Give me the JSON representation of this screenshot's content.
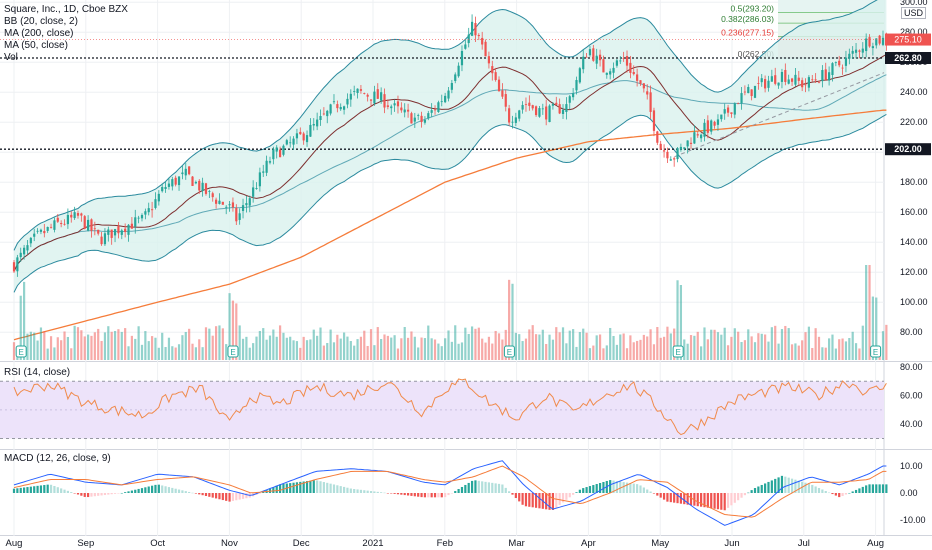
{
  "header": {
    "title": "Square, Inc., 1D, Cboe BZX",
    "bb_label": "BB (20, close, 2)",
    "ma200_label": "MA (200, close)",
    "ma50_label": "MA (50, close)",
    "vol_label": "Vol",
    "currency": "USD"
  },
  "colors": {
    "up": "#26a69a",
    "down": "#ef5350",
    "bb": "#2b8a9e",
    "bb_fill": "#d9f1ee",
    "ma200": "#f57c3a",
    "ma50": "#7e2f2f",
    "rsi": "#f08a4b",
    "rsi_band": "#ede3fa",
    "macd": "#2962ff",
    "signal": "#f57c3a",
    "grid": "#eef0f3",
    "fib": "#e9f5ee"
  },
  "chart_data": [
    {
      "type": "candlestick",
      "title": "Square, Inc., 1D, Cboe BZX",
      "x_tick_labels": [
        "Aug",
        "Sep",
        "Oct",
        "Nov",
        "Dec",
        "2021",
        "Feb",
        "Mar",
        "Apr",
        "May",
        "Jun",
        "Jul",
        "Aug"
      ],
      "x_tick_months": [
        0,
        1,
        2,
        3,
        4,
        5,
        6,
        7,
        8,
        9,
        10,
        11,
        12
      ],
      "y_ticks": [
        80,
        100,
        120,
        140,
        160,
        180,
        200,
        220,
        240,
        260,
        280,
        300
      ],
      "y_tick_labels": [
        "80.00",
        "100.00",
        "120.00",
        "140.00",
        "160.00",
        "180.00",
        "200.00",
        "220.00",
        "240.00",
        "260.00",
        "280.00",
        "300.00"
      ],
      "ylim": [
        72,
        305
      ],
      "price_path_months": [
        0,
        0.3,
        0.6,
        0.9,
        1.2,
        1.5,
        1.8,
        2.1,
        2.4,
        2.7,
        3.0,
        3.1,
        3.3,
        3.6,
        3.9,
        4.2,
        4.5,
        4.8,
        5.1,
        5.4,
        5.7,
        6.0,
        6.2,
        6.4,
        6.7,
        6.9,
        7.1,
        7.4,
        7.7,
        8.0,
        8.2,
        8.5,
        8.8,
        9.0,
        9.2,
        9.5,
        9.8,
        10.1,
        10.4,
        10.7,
        11.0,
        11.3,
        11.6,
        11.9,
        12.1
      ],
      "price_path_close": [
        125,
        143,
        152,
        157,
        142,
        150,
        155,
        177,
        185,
        172,
        163,
        155,
        172,
        198,
        207,
        218,
        232,
        240,
        236,
        226,
        220,
        238,
        262,
        285,
        246,
        222,
        233,
        226,
        231,
        270,
        255,
        262,
        238,
        203,
        197,
        213,
        219,
        236,
        245,
        252,
        245,
        252,
        262,
        275,
        275
      ],
      "ma200_path_months": [
        0,
        2,
        3,
        4,
        5,
        6,
        7,
        8,
        9,
        10,
        11,
        12.1
      ],
      "ma200_values": [
        75,
        100,
        112,
        130,
        155,
        180,
        196,
        207,
        212,
        216,
        222,
        228
      ],
      "bb_width_path": [
        14,
        16,
        24,
        30,
        34,
        40,
        40,
        38,
        34,
        32,
        32,
        40
      ],
      "volume_relative": "bars 0-1, spikes near Nov earnings and Aug earnings",
      "reference_levels": [
        {
          "label": "262.80",
          "value": 262.8
        },
        {
          "label": "202.00",
          "value": 202.0
        }
      ],
      "current_price": {
        "label": "275.10",
        "value": 275.1
      },
      "fib_levels": [
        {
          "label": "0.5(293.20)",
          "value": 293.2
        },
        {
          "label": "0.382(286.03)",
          "value": 286.03
        },
        {
          "label": "0.236(277.15)",
          "value": 277.15
        },
        {
          "label": "0(262.80)",
          "value": 262.8
        }
      ],
      "earnings_markers": [
        0.1,
        3.05,
        6.9,
        9.25,
        12.0
      ],
      "earnings_label": "E"
    },
    {
      "type": "line",
      "title": "RSI (14, close)",
      "y_ticks": [
        40,
        60,
        80
      ],
      "y_tick_labels": [
        "40.00",
        "60.00",
        "80.00"
      ],
      "ylim": [
        28,
        82
      ],
      "band": [
        30,
        70
      ],
      "path_months": [
        0,
        0.5,
        1.0,
        1.4,
        1.8,
        2.2,
        2.6,
        3.0,
        3.3,
        3.7,
        4.2,
        4.7,
        5.2,
        5.7,
        6.0,
        6.3,
        6.6,
        7.0,
        7.4,
        7.8,
        8.2,
        8.6,
        9.0,
        9.3,
        9.6,
        10.0,
        10.4,
        10.8,
        11.2,
        11.6,
        11.9,
        12.1
      ],
      "values": [
        62,
        68,
        55,
        50,
        46,
        60,
        65,
        40,
        60,
        54,
        66,
        60,
        70,
        48,
        65,
        70,
        56,
        44,
        60,
        48,
        60,
        68,
        50,
        34,
        42,
        56,
        62,
        66,
        60,
        70,
        62,
        66
      ]
    },
    {
      "type": "line",
      "title": "MACD (12, 26, close, 9)",
      "y_ticks": [
        -10,
        0,
        10
      ],
      "y_tick_labels": [
        "-10.00",
        "0.00",
        "10.00"
      ],
      "ylim": [
        -14,
        13
      ],
      "path_months": [
        0,
        0.5,
        1.0,
        1.5,
        2.0,
        2.5,
        3.0,
        3.3,
        3.7,
        4.2,
        4.7,
        5.2,
        5.7,
        6.0,
        6.4,
        6.8,
        7.1,
        7.5,
        7.9,
        8.3,
        8.7,
        9.1,
        9.5,
        9.9,
        10.3,
        10.7,
        11.1,
        11.5,
        11.9,
        12.1
      ],
      "macd": [
        3,
        7,
        4,
        3,
        7,
        6,
        1,
        -1,
        3,
        8,
        9,
        8,
        4,
        3,
        9,
        12,
        3,
        -6,
        -3,
        3,
        7,
        2,
        -6,
        -12,
        -8,
        2,
        6,
        3,
        7,
        10
      ],
      "signal": [
        2,
        5,
        5,
        3,
        5,
        6,
        3,
        0,
        1,
        5,
        8,
        8,
        5,
        4,
        6,
        10,
        6,
        -2,
        -4,
        0,
        5,
        4,
        -3,
        -8,
        -9,
        -2,
        4,
        4,
        5,
        8
      ]
    }
  ]
}
